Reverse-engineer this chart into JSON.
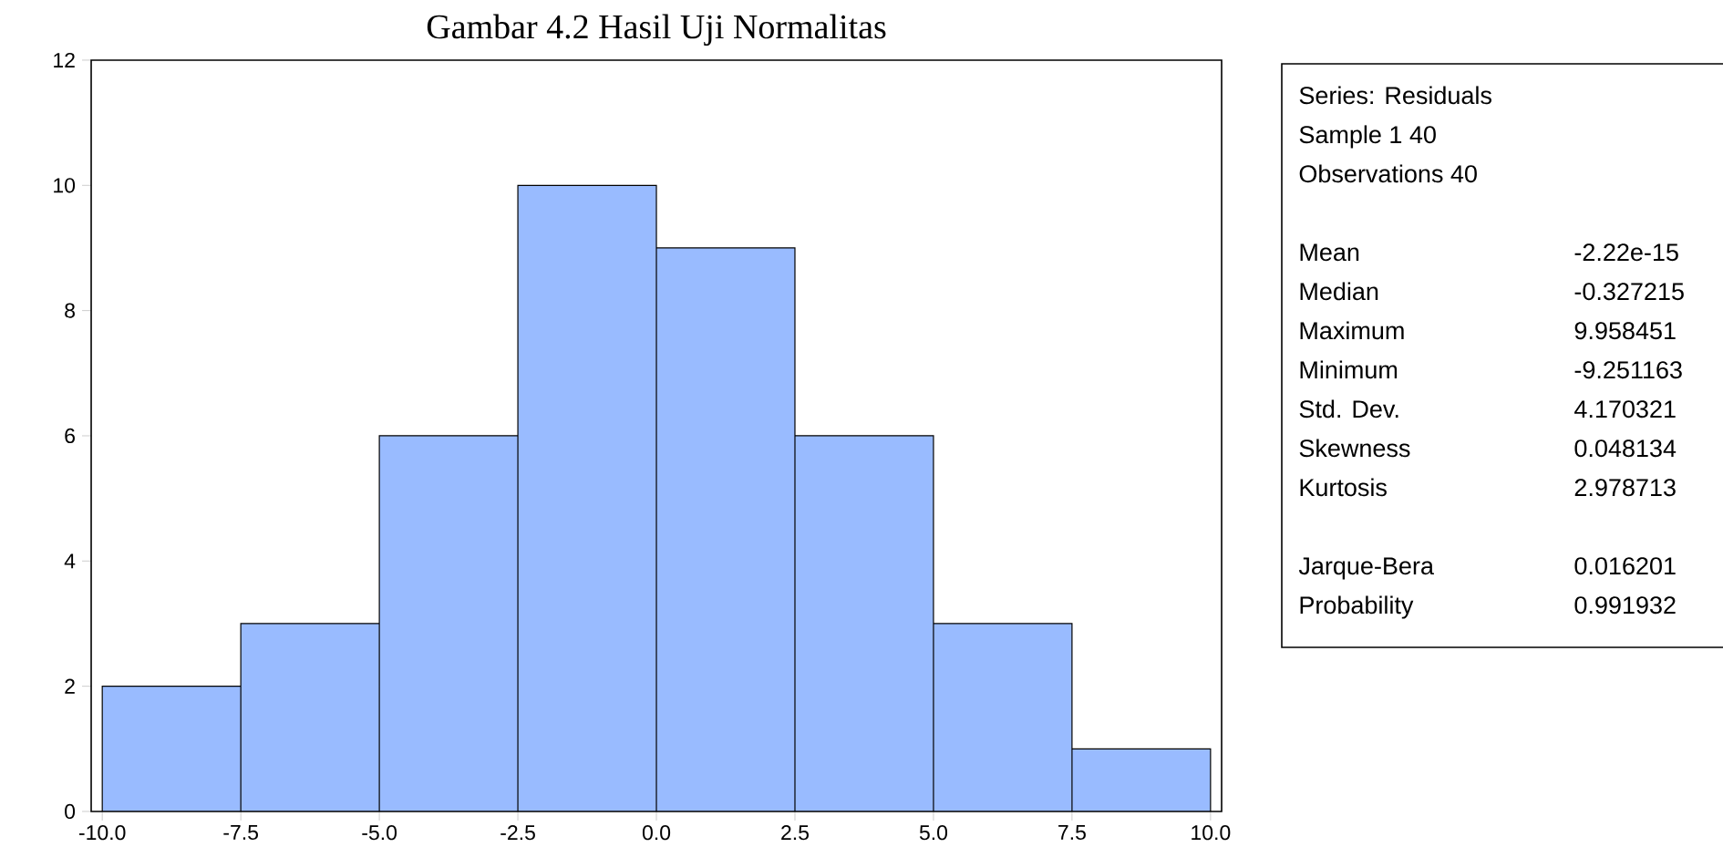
{
  "chart_data": {
    "type": "histogram",
    "title": "Gambar 4.2 Hasil Uji Normalitas",
    "bins": [
      -10,
      -7.5,
      -5,
      -2.5,
      0,
      2.5,
      5,
      7.5,
      10
    ],
    "values": [
      2,
      3,
      6,
      10,
      9,
      6,
      3,
      1
    ],
    "color": "#99bbff",
    "xlim": [
      -10.2,
      10.2
    ],
    "xticks": [
      {
        "value": -10,
        "label": "-10.0"
      },
      {
        "value": -7.5,
        "label": "-7.5"
      },
      {
        "value": -5,
        "label": "-5.0"
      },
      {
        "value": -2.5,
        "label": "-2.5"
      },
      {
        "value": 0,
        "label": "0.0"
      },
      {
        "value": 2.5,
        "label": "2.5"
      },
      {
        "value": 5,
        "label": "5.0"
      },
      {
        "value": 7.5,
        "label": "7.5"
      },
      {
        "value": 10,
        "label": "10.0"
      }
    ],
    "ylim": [
      0,
      12
    ],
    "yticks": [
      0,
      2,
      4,
      6,
      8,
      10,
      12
    ],
    "grid": false,
    "annotations": [
      "Series: Residuals",
      "Sample 1 40",
      "Observations 40",
      "Mean",
      "-2.22e-15",
      "Median",
      "-0.327215",
      "Maximum",
      "9.958451",
      "Minimum",
      "-9.251163",
      "Std. Dev.",
      "4.170321",
      "Skewness",
      "0.048134",
      "Kurtosis",
      "2.978713",
      "Jarque-Bera",
      "0.016201",
      "Probability",
      "0.991932"
    ]
  }
}
